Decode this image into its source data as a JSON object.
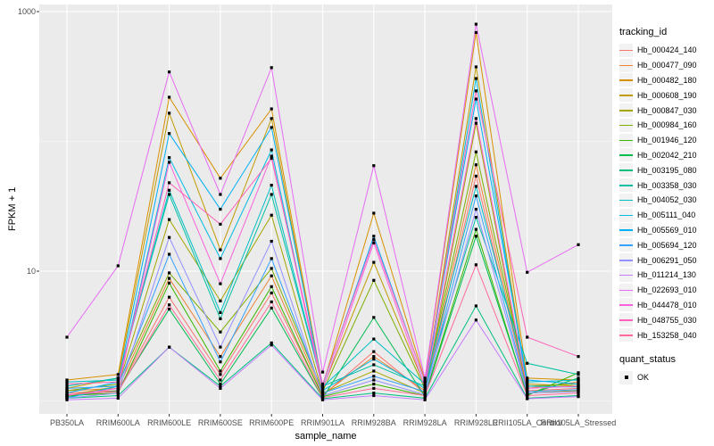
{
  "figure": {
    "y_axis_title": "FPKM + 1",
    "x_axis_title": "sample_name",
    "legend": {
      "tracking_title": "tracking_id",
      "quant_title": "quant_status",
      "quant_entries": [
        {
          "label": "OK"
        }
      ]
    },
    "colors": {
      "panel_bg": "#EBEBEB",
      "grid_major": "#FFFFFF",
      "grid_minor": "#FFFFFF",
      "tick_text": "#4D4D4D",
      "axis_title_text": "#000000",
      "point": "#000000",
      "legend_key_bg": "#F2F2F2"
    }
  },
  "chart_data": {
    "type": "line",
    "title": "",
    "xlabel": "sample_name",
    "ylabel": "FPKM + 1",
    "y_scale": "log10",
    "ylim": [
      0.83,
      1135
    ],
    "grid": true,
    "legend_position": "right",
    "point_marker": "filled-square",
    "quant_status_label": "OK",
    "y_ticks": [
      {
        "value": 1000,
        "label": "1000"
      },
      {
        "value": 10,
        "label": "10"
      }
    ],
    "y_minor_ticks": [
      100,
      1
    ],
    "x_categories": [
      "PB350LA",
      "RRIM600LA",
      "RRIM600LE",
      "RRIM600SE",
      "RRIM600PE",
      "RRIM901LA",
      "RRIM928BA",
      "RRIM928LA",
      "RRIM928LE",
      "RRII105LA_Control",
      "RRII105LA_Stressed"
    ],
    "series": [
      {
        "name": "Hb_000424_140",
        "color": "#F8766D",
        "values": [
          1.15,
          1.2,
          6.3,
          1.6,
          6.8,
          1.1,
          2.4,
          1.15,
          54,
          1.2,
          1.25
        ]
      },
      {
        "name": "Hb_000477_090",
        "color": "#EB8335",
        "values": [
          1.2,
          1.25,
          8.8,
          2.2,
          9.2,
          1.12,
          2.2,
          1.2,
          66,
          1.25,
          1.4
        ]
      },
      {
        "name": "Hb_000482_180",
        "color": "#D89000",
        "values": [
          1.45,
          1.6,
          219,
          52,
          178,
          1.3,
          28,
          1.45,
          690,
          1.5,
          1.45
        ]
      },
      {
        "name": "Hb_000608_190",
        "color": "#C09B00",
        "values": [
          1.25,
          1.5,
          165,
          14.6,
          150,
          1.25,
          11.7,
          1.3,
          375,
          1.35,
          1.3
        ]
      },
      {
        "name": "Hb_000847_030",
        "color": "#A3A500",
        "values": [
          1.1,
          1.3,
          25,
          5.9,
          27,
          1.15,
          1.7,
          1.15,
          138,
          1.15,
          1.2
        ]
      },
      {
        "name": "Hb_000984_160",
        "color": "#7CAE00",
        "values": [
          1.2,
          1.35,
          9.7,
          3.4,
          10.5,
          1.18,
          8.5,
          1.25,
          83,
          1.3,
          1.35
        ]
      },
      {
        "name": "Hb_001946_120",
        "color": "#39B600",
        "values": [
          1.1,
          1.15,
          8.1,
          1.7,
          7.6,
          1.08,
          1.35,
          1.1,
          21,
          1.1,
          1.65
        ]
      },
      {
        "name": "Hb_002042_210",
        "color": "#00BB4E",
        "values": [
          1.08,
          1.2,
          5.1,
          1.35,
          5.2,
          1.05,
          4.4,
          1.08,
          18.6,
          1.12,
          1.5
        ]
      },
      {
        "name": "Hb_003195_080",
        "color": "#00BF7D",
        "values": [
          1.05,
          1.1,
          2.6,
          1.3,
          2.8,
          1.04,
          1.15,
          1.05,
          5.4,
          1.05,
          1.1
        ]
      },
      {
        "name": "Hb_003358_030",
        "color": "#00C1A3",
        "values": [
          1.3,
          1.5,
          39,
          4.3,
          39,
          1.3,
          1.9,
          1.3,
          26,
          1.95,
          1.6
        ]
      },
      {
        "name": "Hb_004052_030",
        "color": "#00BFC4",
        "values": [
          1.4,
          1.45,
          42,
          4.8,
          46,
          1.28,
          3.0,
          1.35,
          45,
          1.4,
          1.45
        ]
      },
      {
        "name": "Hb_005111_040",
        "color": "#00BAE0",
        "values": [
          1.05,
          1.3,
          75,
          12.5,
          86,
          1.2,
          2.1,
          1.25,
          305,
          1.3,
          1.28
        ]
      },
      {
        "name": "Hb_005569_010",
        "color": "#00B0F6",
        "values": [
          1.15,
          1.4,
          115,
          30,
          128,
          1.32,
          18.6,
          1.4,
          212,
          1.45,
          1.35
        ]
      },
      {
        "name": "Hb_005694_120",
        "color": "#35A2FF",
        "values": [
          1.25,
          1.3,
          13.5,
          2.0,
          12.5,
          1.15,
          1.55,
          1.18,
          38,
          1.18,
          1.22
        ]
      },
      {
        "name": "Hb_006291_050",
        "color": "#9590FF",
        "values": [
          1.05,
          1.15,
          18.2,
          2.6,
          17,
          1.1,
          1.45,
          1.12,
          30,
          1.15,
          1.18
        ]
      },
      {
        "name": "Hb_011214_130",
        "color": "#C77CFF",
        "values": [
          1.02,
          1.05,
          2.6,
          1.25,
          2.7,
          1.02,
          1.1,
          1.02,
          4.2,
          1.04,
          1.08
        ]
      },
      {
        "name": "Hb_022693_010",
        "color": "#E76BF3",
        "values": [
          3.1,
          11,
          343,
          39,
          370,
          1.67,
          65,
          1.5,
          800,
          9.8,
          16
        ]
      },
      {
        "name": "Hb_044478_010",
        "color": "#FA62DB",
        "values": [
          1.1,
          1.25,
          69,
          8.0,
          77,
          1.22,
          16.5,
          1.28,
          150,
          1.25,
          1.3
        ]
      },
      {
        "name": "Hb_048755_030",
        "color": "#FF62BC",
        "values": [
          1.35,
          1.4,
          48,
          23,
          74,
          1.35,
          17.5,
          1.42,
          245,
          3.1,
          2.2
        ]
      },
      {
        "name": "Hb_153258_040",
        "color": "#FF6A98",
        "values": [
          1.12,
          1.18,
          5.5,
          1.45,
          5.8,
          1.06,
          1.25,
          1.1,
          11.2,
          1.1,
          1.15
        ]
      }
    ]
  }
}
